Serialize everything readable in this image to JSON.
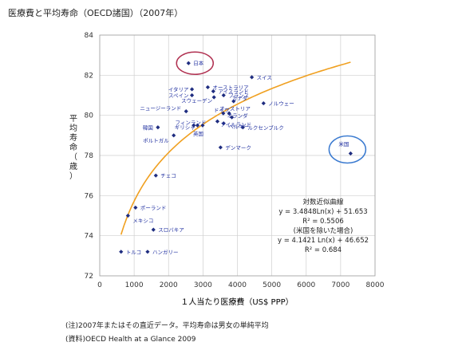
{
  "page": {
    "title": "医療費と平均寿命（OECD諸国）（2007年）",
    "note1": "(注)2007年またはその直近データ。平均寿命は男女の単純平均",
    "note2": "(資料)OECD Health at a Glance 2009"
  },
  "chart_data": {
    "type": "scatter",
    "xlabel": "１人当たり医療費（US$ PPP）",
    "ylabel": "平均寿命（歳）",
    "xlim": [
      0,
      8000
    ],
    "ylim": [
      72,
      84
    ],
    "xticks": [
      "0",
      "1000",
      "2000",
      "3000",
      "4000",
      "5000",
      "6000",
      "7000",
      "8000"
    ],
    "yticks": [
      "72",
      "74",
      "76",
      "78",
      "80",
      "82",
      "84"
    ],
    "grid": true,
    "colors": {
      "point": "#1f2d80",
      "trend": "#f0a020",
      "highlight_japan": "#b03050",
      "highlight_us": "#3a7ad0",
      "label": "#2030a0"
    },
    "points": [
      {
        "name": "日本",
        "x": 2580,
        "y": 82.6
      },
      {
        "name": "スイス",
        "x": 4420,
        "y": 81.9
      },
      {
        "name": "オーストラリア",
        "x": 3140,
        "y": 81.4
      },
      {
        "name": "イタリア",
        "x": 2680,
        "y": 81.3
      },
      {
        "name": "スペイン",
        "x": 2680,
        "y": 81.0
      },
      {
        "name": "アイスランド",
        "x": 3300,
        "y": 81.2
      },
      {
        "name": "フランス",
        "x": 3600,
        "y": 81.0
      },
      {
        "name": "スウェーデン",
        "x": 3320,
        "y": 80.9
      },
      {
        "name": "カナダ",
        "x": 3890,
        "y": 80.7
      },
      {
        "name": "ノルウェー",
        "x": 4760,
        "y": 80.6
      },
      {
        "name": "ニュージーランド",
        "x": 2510,
        "y": 80.2
      },
      {
        "name": "ドイツ",
        "x": 3590,
        "y": 80.1
      },
      {
        "name": "オーストリア",
        "x": 3760,
        "y": 80.1
      },
      {
        "name": "オランダ",
        "x": 3840,
        "y": 79.9
      },
      {
        "name": "ベルギー",
        "x": 3600,
        "y": 79.6
      },
      {
        "name": "フィンランド",
        "x": 2840,
        "y": 79.5
      },
      {
        "name": "ギリシャ",
        "x": 2730,
        "y": 79.5
      },
      {
        "name": "英国",
        "x": 2990,
        "y": 79.5
      },
      {
        "name": "アイルランド",
        "x": 3420,
        "y": 79.7
      },
      {
        "name": "ルクセンブルク",
        "x": 4160,
        "y": 79.4
      },
      {
        "name": "韓国",
        "x": 1690,
        "y": 79.4
      },
      {
        "name": "ポルトガル",
        "x": 2150,
        "y": 79.0
      },
      {
        "name": "デンマーク",
        "x": 3510,
        "y": 78.4
      },
      {
        "name": "米国",
        "x": 7290,
        "y": 78.1
      },
      {
        "name": "チェコ",
        "x": 1630,
        "y": 77.0
      },
      {
        "name": "ポーランド",
        "x": 1040,
        "y": 75.4
      },
      {
        "name": "メキシコ",
        "x": 820,
        "y": 75.0
      },
      {
        "name": "スロバキア",
        "x": 1560,
        "y": 74.3
      },
      {
        "name": "トルコ",
        "x": 620,
        "y": 73.2
      },
      {
        "name": "ハンガリー",
        "x": 1390,
        "y": 73.2
      }
    ],
    "trend": {
      "a": 3.4848,
      "b": 51.653,
      "xrange": [
        620,
        7290
      ]
    },
    "annotation": [
      "対数近似曲線",
      "y = 3.4848Ln(x) + 51.653",
      "R² = 0.5506",
      "(米国を除いた場合)",
      "y = 4.1421 Ln(x) + 46.652",
      "R² = 0.684"
    ]
  }
}
